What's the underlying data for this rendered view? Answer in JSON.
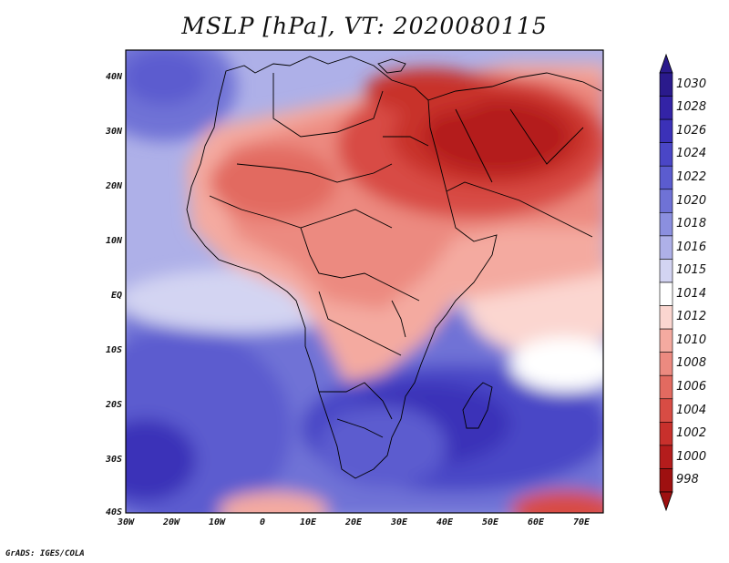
{
  "title": "MSLP [hPa], VT: 2020080115",
  "credit": "GrADS: IGES/COLA",
  "y_ticks": [
    "40N",
    "30N",
    "20N",
    "10N",
    "EQ",
    "10S",
    "20S",
    "30S",
    "40S"
  ],
  "x_ticks": [
    "30W",
    "20W",
    "10W",
    "0",
    "10E",
    "20E",
    "30E",
    "40E",
    "50E",
    "60E",
    "70E"
  ],
  "colorbar": {
    "levels": [
      "1030",
      "1028",
      "1026",
      "1024",
      "1022",
      "1020",
      "1018",
      "1016",
      "1015",
      "1014",
      "1012",
      "1010",
      "1008",
      "1006",
      "1004",
      "1002",
      "1000",
      "998"
    ],
    "colors": [
      "#2a1a8c",
      "#3323a6",
      "#3b31b8",
      "#4a46c6",
      "#5b5ccf",
      "#6f72d6",
      "#8b8fdf",
      "#aeb0e8",
      "#d3d4f2",
      "#ffffff",
      "#fbd6d0",
      "#f4aaa0",
      "#ec8a80",
      "#e26a60",
      "#d84c44",
      "#c8302c",
      "#b41c1c",
      "#9e1010"
    ]
  },
  "colors": {
    "high_deep": "#3b31b8",
    "high_mid": "#6f72d6",
    "high_light": "#aeb0e8",
    "neutral": "#ffffff",
    "low_light": "#f4aaa0",
    "low_mid": "#e26a60",
    "low_deep": "#b41c1c"
  }
}
